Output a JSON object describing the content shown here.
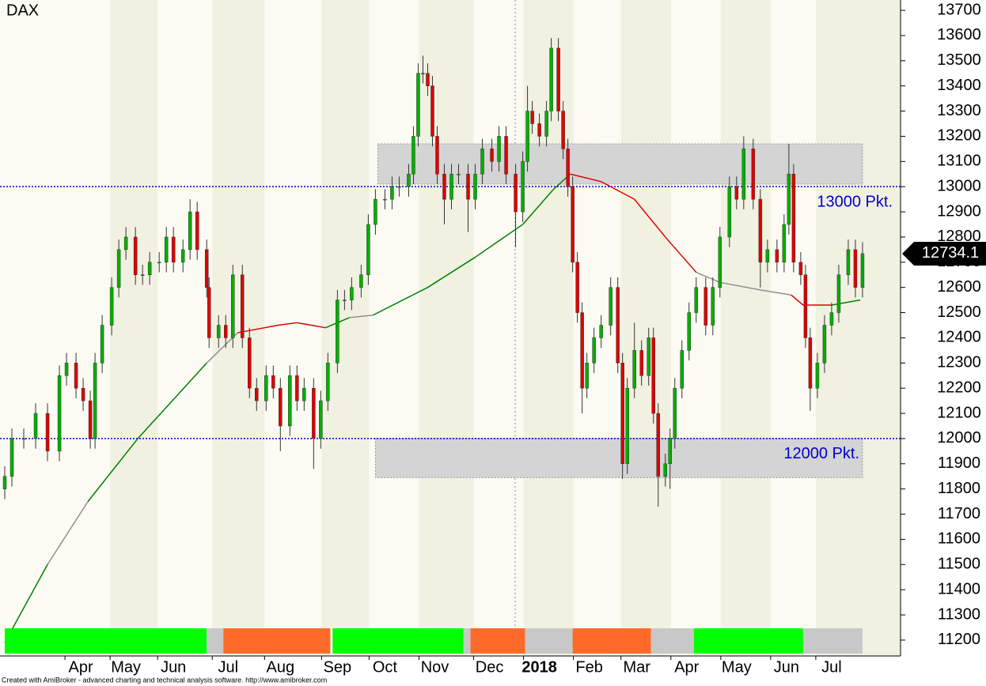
{
  "chart_data": {
    "type": "candlestick",
    "title": "DAX",
    "x": [
      2,
      5,
      10,
      15,
      20,
      25,
      28,
      32,
      35,
      38,
      40,
      43,
      47,
      50,
      53,
      57,
      60,
      63,
      67,
      70,
      73,
      77,
      80,
      83,
      87,
      88,
      92,
      95,
      98,
      102,
      105,
      108,
      112,
      115,
      118,
      122,
      125,
      128,
      132,
      135,
      138,
      142,
      145,
      148,
      152,
      155,
      158,
      162,
      165,
      168,
      172,
      174,
      176,
      178,
      180,
      182,
      184,
      187,
      190,
      193,
      197,
      200,
      203,
      207,
      210,
      213,
      217,
      220,
      222,
      224,
      227,
      230,
      232,
      235,
      237,
      239,
      241,
      243,
      245,
      247,
      250,
      253,
      257,
      260,
      262,
      264,
      267,
      270,
      273,
      275,
      277,
      280,
      282,
      284,
      287,
      290,
      293,
      297,
      300,
      303,
      307,
      310,
      313,
      317,
      320,
      323,
      327,
      330,
      332,
      334,
      337,
      339,
      341,
      344,
      347,
      350,
      353,
      357,
      360,
      363
    ],
    "open": [
      11800,
      11850,
      12000,
      12000,
      12100,
      11950,
      12250,
      12300,
      12200,
      12150,
      12000,
      12300,
      12450,
      12600,
      12750,
      12800,
      12650,
      12650,
      12700,
      12700,
      12800,
      12700,
      12750,
      12900,
      12750,
      12600,
      12400,
      12450,
      12400,
      12650,
      12400,
      12200,
      12150,
      12250,
      12200,
      12050,
      12250,
      12150,
      12200,
      12000,
      12150,
      12300,
      12550,
      12550,
      12600,
      12650,
      12850,
      12950,
      12950,
      13000,
      13000,
      13050,
      13200,
      13450,
      13450,
      13400,
      13200,
      13050,
      12950,
      13050,
      13050,
      12950,
      13050,
      13150,
      13100,
      13200,
      13050,
      12900,
      13100,
      13300,
      13250,
      13200,
      13300,
      13550,
      13300,
      13150,
      13000,
      12700,
      12500,
      12200,
      12300,
      12400,
      12450,
      12600,
      12300,
      11900,
      12200,
      12350,
      12250,
      12400,
      12100,
      11850,
      11900,
      12000,
      12200,
      12350,
      12500,
      12600,
      12450,
      12600,
      12800,
      13000,
      12950,
      13150,
      12950,
      12700,
      12750,
      12700,
      12850,
      13050,
      12700,
      12650,
      12400,
      12200,
      12300,
      12450,
      12500,
      12650,
      12750,
      12600
    ],
    "high": [
      11890,
      12040,
      12040,
      12140,
      12140,
      12290,
      12340,
      12340,
      12240,
      12190,
      12340,
      12490,
      12640,
      12790,
      12840,
      12840,
      12690,
      12740,
      12740,
      12840,
      12840,
      12790,
      12950,
      12940,
      12790,
      12640,
      12490,
      12490,
      12690,
      12690,
      12440,
      12240,
      12290,
      12290,
      12240,
      12290,
      12290,
      12240,
      12240,
      12190,
      12340,
      12590,
      12590,
      12640,
      12690,
      12890,
      12990,
      12990,
      13040,
      13040,
      13090,
      13240,
      13490,
      13520,
      13490,
      13440,
      13240,
      13090,
      13090,
      13090,
      13090,
      13090,
      13190,
      13190,
      13240,
      13240,
      13090,
      13140,
      13400,
      13340,
      13290,
      13340,
      13590,
      13590,
      13340,
      13190,
      13040,
      12740,
      12540,
      12340,
      12440,
      12490,
      12640,
      12640,
      12340,
      12240,
      12460,
      12390,
      12440,
      12440,
      12140,
      11940,
      12040,
      12240,
      12390,
      12540,
      12640,
      12640,
      12640,
      12840,
      13040,
      13040,
      13200,
      13190,
      12990,
      12790,
      12790,
      12890,
      13170,
      13090,
      12740,
      12690,
      12440,
      12340,
      12490,
      12540,
      12690,
      12790,
      12790,
      12780
    ],
    "low": [
      11760,
      11810,
      11960,
      11960,
      11910,
      11910,
      12210,
      12160,
      12110,
      11960,
      11960,
      12260,
      12410,
      12560,
      12710,
      12610,
      12610,
      12610,
      12660,
      12660,
      12660,
      12660,
      12710,
      12710,
      12560,
      12360,
      12360,
      12360,
      12360,
      12360,
      12160,
      12110,
      12110,
      12160,
      11950,
      12010,
      12110,
      12110,
      11880,
      11960,
      12110,
      12260,
      12510,
      12510,
      12560,
      12610,
      12810,
      12910,
      12910,
      12960,
      12960,
      13010,
      13160,
      13410,
      13360,
      13160,
      13010,
      12850,
      12910,
      13010,
      12820,
      12910,
      13010,
      13060,
      13060,
      13010,
      12760,
      12860,
      13060,
      13210,
      13160,
      13160,
      13260,
      13260,
      13110,
      12960,
      12660,
      12460,
      12100,
      12160,
      12260,
      12360,
      12410,
      12260,
      11840,
      11860,
      12160,
      12210,
      12210,
      12060,
      11730,
      11810,
      11800,
      11960,
      12160,
      12310,
      12460,
      12410,
      12410,
      12560,
      12760,
      12910,
      12910,
      12910,
      12600,
      12660,
      12660,
      12660,
      12810,
      12660,
      12610,
      12360,
      12110,
      12160,
      12260,
      12410,
      12460,
      12610,
      12560,
      12560
    ],
    "close": [
      11850,
      12000,
      12000,
      12100,
      11950,
      12250,
      12300,
      12200,
      12150,
      12000,
      12300,
      12450,
      12600,
      12750,
      12800,
      12650,
      12650,
      12700,
      12700,
      12800,
      12700,
      12750,
      12900,
      12750,
      12600,
      12400,
      12450,
      12400,
      12650,
      12400,
      12200,
      12150,
      12250,
      12200,
      12050,
      12250,
      12150,
      12200,
      12000,
      12150,
      12300,
      12550,
      12550,
      12600,
      12650,
      12850,
      12950,
      12950,
      13000,
      13000,
      13050,
      13200,
      13450,
      13450,
      13400,
      13200,
      13050,
      12950,
      13050,
      13050,
      12950,
      13050,
      13150,
      13100,
      13200,
      13050,
      12900,
      13100,
      13300,
      13250,
      13200,
      13300,
      13550,
      13300,
      13150,
      13000,
      12700,
      12500,
      12200,
      12300,
      12400,
      12450,
      12600,
      12300,
      11900,
      12200,
      12350,
      12250,
      12400,
      12100,
      11850,
      11900,
      12000,
      12200,
      12350,
      12500,
      12600,
      12450,
      12600,
      12800,
      13000,
      12950,
      13150,
      12950,
      12700,
      12750,
      12700,
      12850,
      13050,
      12700,
      12650,
      12400,
      12200,
      12300,
      12450,
      12500,
      12650,
      12750,
      12600,
      12734.1
    ],
    "up_color": "#00b000",
    "down_color": "#e00000",
    "xlim": [
      0,
      379
    ],
    "ylim": [
      11137,
      13741
    ],
    "yticks": [
      11200,
      11300,
      11400,
      11500,
      11600,
      11700,
      11800,
      11900,
      12000,
      12100,
      12200,
      12300,
      12400,
      12500,
      12600,
      12700,
      12800,
      12900,
      13000,
      13100,
      13200,
      13300,
      13400,
      13500,
      13600,
      13700
    ],
    "xticks": [
      {
        "value": 34,
        "label": "Apr"
      },
      {
        "value": 53,
        "label": "May"
      },
      {
        "value": 73,
        "label": "Jun"
      },
      {
        "value": 96,
        "label": "Jul"
      },
      {
        "value": 118,
        "label": "Aug"
      },
      {
        "value": 142,
        "label": "Sep"
      },
      {
        "value": 162,
        "label": "Oct"
      },
      {
        "value": 183,
        "label": "Nov"
      },
      {
        "value": 206,
        "label": "Dec"
      },
      {
        "value": 227,
        "label": "2018"
      },
      {
        "value": 248,
        "label": "Feb"
      },
      {
        "value": 268,
        "label": "Mar"
      },
      {
        "value": 289,
        "label": "Apr"
      },
      {
        "value": 310,
        "label": "May"
      },
      {
        "value": 331,
        "label": "Jun"
      },
      {
        "value": 350,
        "label": "Jul"
      }
    ],
    "moving_average": {
      "x": [
        2,
        20,
        37,
        58,
        87,
        100,
        117,
        125,
        137,
        147,
        157,
        180,
        200,
        220,
        233,
        240,
        253,
        267,
        280,
        293,
        303,
        320,
        333,
        338,
        350,
        362
      ],
      "values": [
        11190,
        11500,
        11750,
        12000,
        12300,
        12420,
        12450,
        12460,
        12440,
        12480,
        12490,
        12600,
        12720,
        12850,
        12990,
        13050,
        13020,
        12950,
        12800,
        12660,
        12620,
        12590,
        12570,
        12530,
        12530,
        12550
      ],
      "segment_colors": [
        "#008000",
        "#909090",
        "#008000",
        "#008000",
        "#909090",
        "#e00000",
        "#e00000",
        "#e00000",
        "#008000",
        "#909090",
        "#008000",
        "#008000",
        "#008000",
        "#008000",
        "#008000",
        "#e00000",
        "#e00000",
        "#e00000",
        "#e00000",
        "#909090",
        "#909090",
        "#909090",
        "#e00000",
        "#e00000",
        "#008000"
      ]
    },
    "levels": [
      {
        "value": 13000,
        "label": "13000 Pkt."
      },
      {
        "value": 12000,
        "label": "12000 Pkt."
      }
    ],
    "level_color": "#0000c8",
    "zones": [
      {
        "x": [
          159,
          363
        ],
        "y": [
          13010,
          13170
        ]
      },
      {
        "x": [
          158,
          363
        ],
        "y": [
          11845,
          12000
        ]
      }
    ],
    "regime_bar": [
      {
        "start": 2,
        "end": 87,
        "color": "#00ff00"
      },
      {
        "start": 87,
        "end": 94,
        "color": "#c8c8c8"
      },
      {
        "start": 94,
        "end": 139,
        "color": "#ff6a2a"
      },
      {
        "start": 140,
        "end": 195,
        "color": "#00ff00"
      },
      {
        "start": 195,
        "end": 198,
        "color": "#c8c8c8"
      },
      {
        "start": 198,
        "end": 221,
        "color": "#ff6a2a"
      },
      {
        "start": 221,
        "end": 241,
        "color": "#c8c8c8"
      },
      {
        "start": 241,
        "end": 274,
        "color": "#ff6a2a"
      },
      {
        "start": 274,
        "end": 292,
        "color": "#c8c8c8"
      },
      {
        "start": 292,
        "end": 338,
        "color": "#00ff00"
      },
      {
        "start": 338,
        "end": 363,
        "color": "#c8c8c8"
      }
    ],
    "footer": "Created with AmiBroker - advanced charting and technical analysis software. http://www.amibroker.com"
  }
}
